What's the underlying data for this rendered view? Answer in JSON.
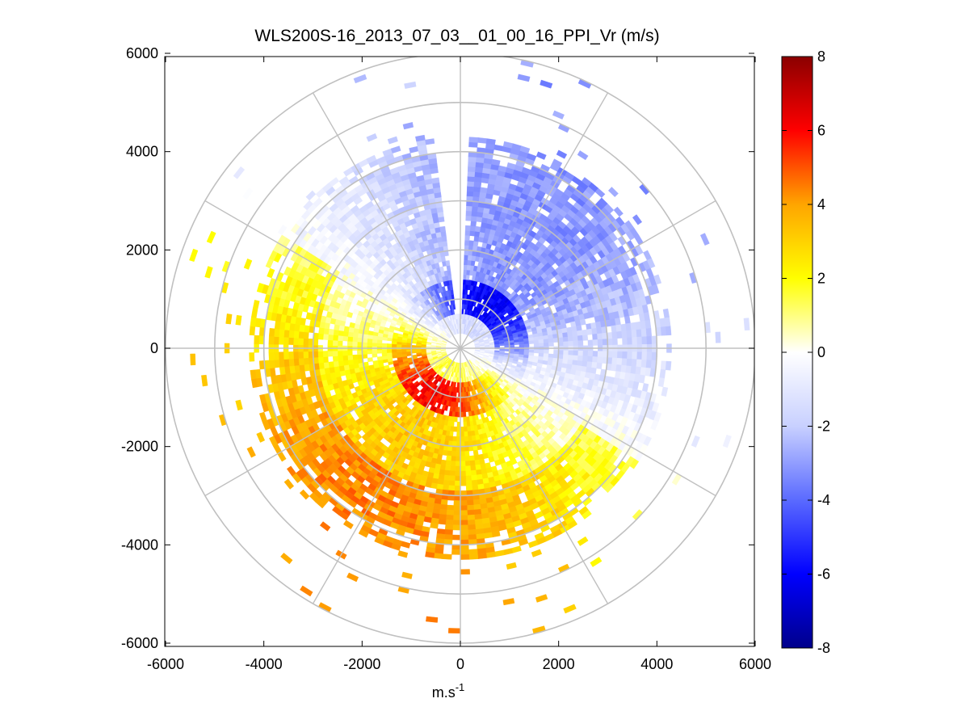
{
  "chart_data": {
    "type": "polar-ppi-heatmap",
    "title": "WLS200S-16_2013_07_03__01_00_16_PPI_Vr (m/s)",
    "xlabel": "m.s",
    "xlabel_superscript": "-1",
    "ylabel": "",
    "xlim": [
      -6000,
      6000
    ],
    "ylim": [
      -6000,
      6000
    ],
    "x_ticks": [
      -6000,
      -4000,
      -2000,
      0,
      2000,
      4000,
      6000
    ],
    "y_ticks": [
      6000,
      4000,
      2000,
      0,
      -2000,
      -4000,
      -6000
    ],
    "x_tick_labels": [
      "-6000",
      "-4000",
      "-2000",
      "0",
      "2000",
      "4000",
      "6000"
    ],
    "y_tick_labels": [
      "6000",
      "4000",
      "2000",
      "0",
      "-2000",
      "-4000",
      "-6000"
    ],
    "range_rings_m": [
      1000,
      2000,
      3000,
      4000,
      5000,
      6000
    ],
    "spokes_deg": [
      0,
      30,
      60,
      90,
      120,
      150,
      180,
      210,
      240,
      270,
      300,
      330
    ],
    "colorbar": {
      "clim": [
        -8,
        8
      ],
      "ticks": [
        8,
        6,
        4,
        2,
        0,
        -2,
        -4,
        -6,
        -8
      ],
      "tick_labels": [
        "8",
        "6",
        "4",
        "2",
        "0",
        "-2",
        "-4",
        "-6",
        "-8"
      ],
      "colors": [
        "#00008b",
        "#0000ff",
        "#5a6aff",
        "#c8d0ff",
        "#ffffff",
        "#ffff00",
        "#ffa500",
        "#ff0000",
        "#8b0000"
      ]
    },
    "field_description": "Radial velocity: negative (blue) toward north/east sector, positive (yellow-red) toward south/west sector; data mostly within 4300 m range, sparse gates beyond.",
    "approaching_sector_deg": [
      -40,
      110
    ],
    "receding_sector_deg": [
      120,
      290
    ]
  },
  "colors": {
    "grid": "#c0c0c0",
    "axes": "#000000"
  }
}
